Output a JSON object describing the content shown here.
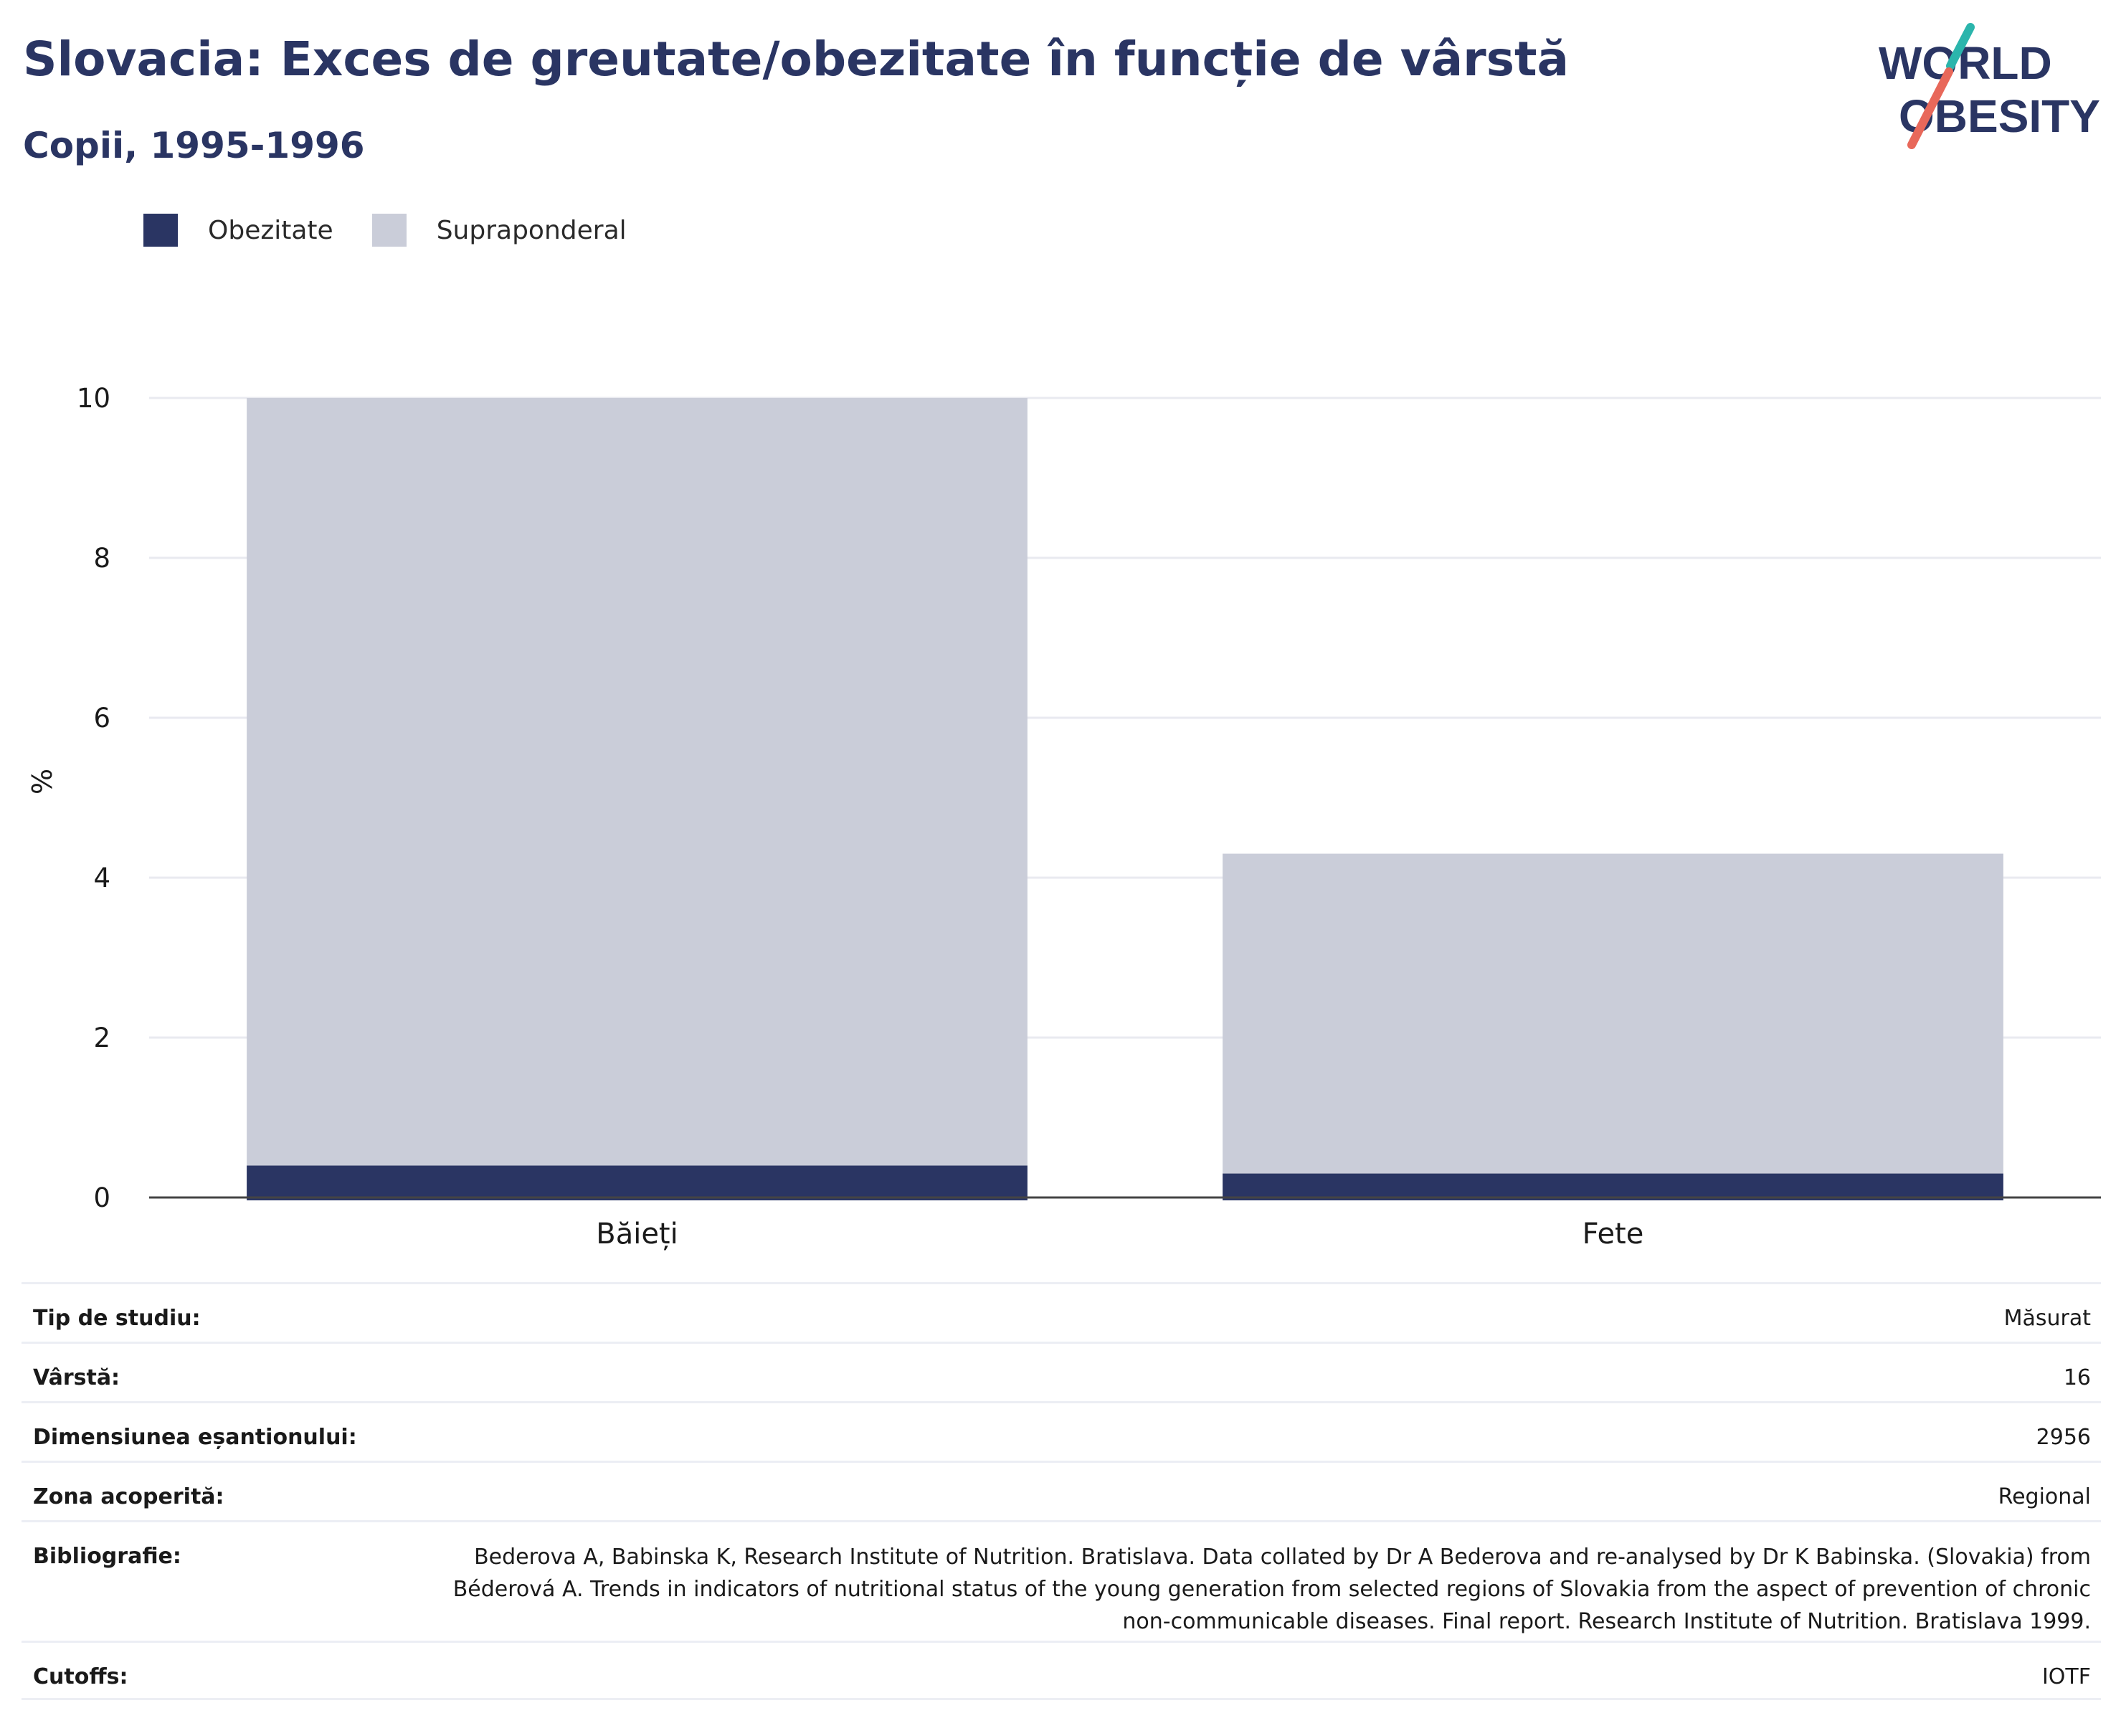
{
  "title": "Slovacia: Exces de greutate/obezitate în funcție de vârstă",
  "subtitle": "Copii, 1995-1996",
  "logo": {
    "line1": "WORLD",
    "line2": "OBESITY",
    "accent_teal": "#2bb5ac",
    "accent_coral": "#e8685a"
  },
  "colors": {
    "obezitate": "#2a3563",
    "supraponderal": "#cacdd9",
    "text": "#2a3563",
    "grid": "#e9eaf0",
    "axis": "#444444"
  },
  "chart_data": {
    "type": "bar",
    "stacked": true,
    "categories": [
      "Băieți",
      "Fete"
    ],
    "series": [
      {
        "name": "Obezitate",
        "values": [
          0.4,
          0.3
        ]
      },
      {
        "name": "Supraponderal",
        "values": [
          9.6,
          4.0
        ]
      }
    ],
    "ylabel": "%",
    "ylim": [
      0,
      10
    ],
    "yticks": [
      0,
      2,
      4,
      6,
      8,
      10
    ],
    "grid": true,
    "legend_position": "top-left"
  },
  "info": [
    {
      "label": "Tip de studiu:",
      "value": "Măsurat"
    },
    {
      "label": "Vârstă:",
      "value": "16"
    },
    {
      "label": "Dimensiunea eșantionului:",
      "value": "2956"
    },
    {
      "label": "Zona acoperită:",
      "value": "Regional"
    },
    {
      "label": "Bibliografie:",
      "value": "Bederova A, Babinska K, Research Institute of Nutrition. Bratislava. Data collated by Dr A Bederova and re-analysed by Dr K Babinska. (Slovakia) from Béderová A. Trends in indicators of nutritional status of the young generation from selected regions of Slovakia from the aspect of prevention of chronic non-communicable diseases. Final report. Research Institute of Nutrition. Bratislava 1999."
    },
    {
      "label": "Cutoffs:",
      "value": "IOTF"
    }
  ]
}
